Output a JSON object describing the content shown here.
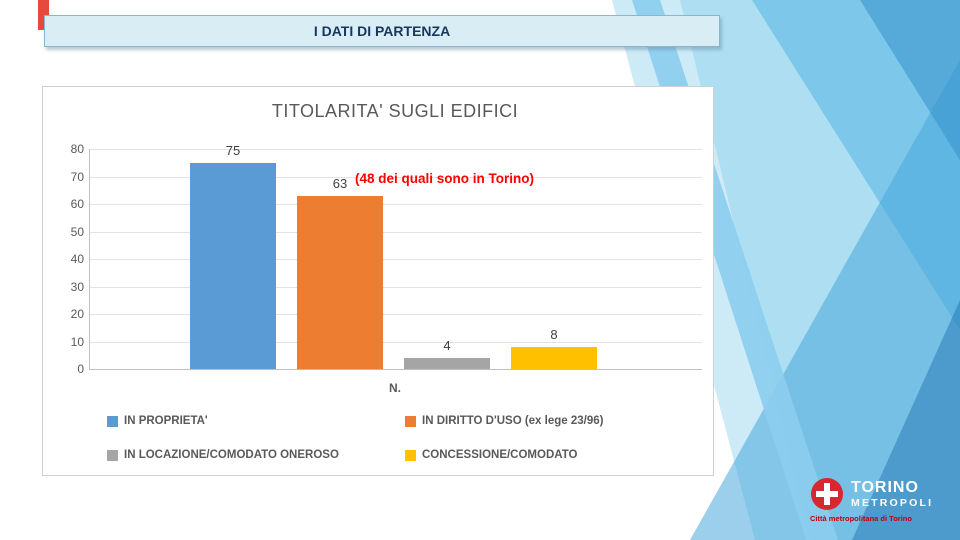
{
  "slide": {
    "title": "I DATI DI PARTENZA"
  },
  "chart_data": {
    "type": "bar",
    "title": "TITOLARITA' SUGLI EDIFICI",
    "categories": [
      "IN PROPRIETA'",
      "IN DIRITTO D'USO (ex lege 23/96)",
      "IN LOCAZIONE/COMODATO ONEROSO",
      "CONCESSIONE/COMODATO"
    ],
    "values": [
      75,
      63,
      4,
      8
    ],
    "colors": [
      "#5b9bd5",
      "#ed7d31",
      "#a5a5a5",
      "#ffc000"
    ],
    "xlabel": "N.",
    "ylabel": "",
    "ylim": [
      0,
      80
    ],
    "ytick_step": 10,
    "grid": true,
    "legend_position": "bottom",
    "annotation": "(48 dei quali sono in Torino)",
    "annotation_color": "#ff0000"
  },
  "logo": {
    "line1": "TORINO",
    "line2": "METROPOLI",
    "caption": "Città metropolitana di Torino",
    "accent_color": "#d7282f"
  }
}
